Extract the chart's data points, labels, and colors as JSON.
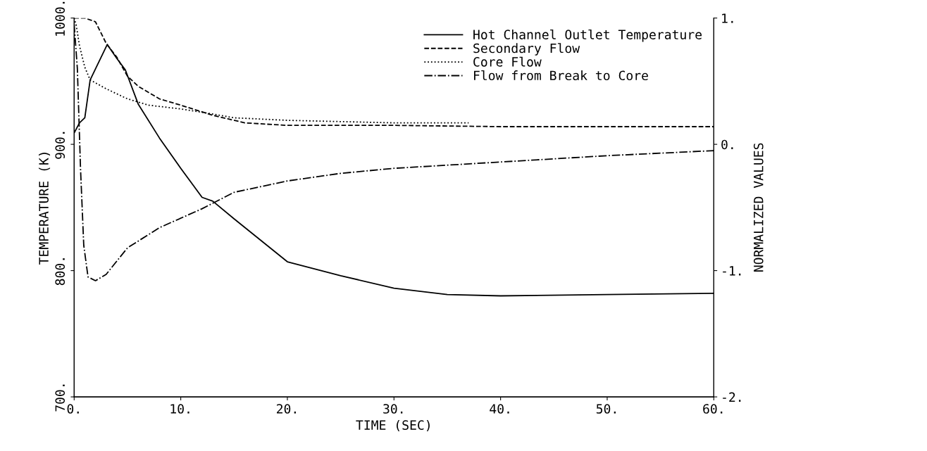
{
  "chart_data": {
    "type": "line",
    "xlabel": "TIME (SEC)",
    "ylabel": "TEMPERATURE (K)",
    "y2label": "NORMALIZED VALUES",
    "xlim": [
      0,
      60
    ],
    "xticks": [
      {
        "value": 0,
        "label": "0."
      },
      {
        "value": 10,
        "label": "10."
      },
      {
        "value": 20,
        "label": "20."
      },
      {
        "value": 30,
        "label": "30."
      },
      {
        "value": 40,
        "label": "40."
      },
      {
        "value": 50,
        "label": "50."
      },
      {
        "value": 60,
        "label": "60."
      }
    ],
    "ylim": [
      700,
      1000
    ],
    "yticks": [
      {
        "value": 700,
        "label": "700."
      },
      {
        "value": 800,
        "label": "800."
      },
      {
        "value": 900,
        "label": "900."
      },
      {
        "value": 1000,
        "label": "1000."
      }
    ],
    "y2lim": [
      -2,
      1
    ],
    "y2ticks": [
      {
        "value": -2,
        "label": "-2."
      },
      {
        "value": -1,
        "label": "-1."
      },
      {
        "value": 0,
        "label": "0."
      },
      {
        "value": 1,
        "label": "1."
      }
    ],
    "legend": "top right",
    "grid": false,
    "series": [
      {
        "name": "Hot Channel Outlet Temperature",
        "color": "#000000",
        "line_style": "solid",
        "x": [
          0,
          0.5,
          1,
          1.5,
          3.1,
          4,
          4.8,
          6,
          8,
          10,
          12,
          13,
          15,
          20,
          25,
          30,
          35,
          40,
          50,
          60
        ],
        "values": [
          909,
          917,
          921,
          951,
          979,
          968,
          959,
          932,
          905,
          881,
          858,
          855,
          841,
          807,
          796,
          786,
          781,
          780,
          781,
          782
        ]
      },
      {
        "name": "Secondary Flow",
        "color": "#000000",
        "line_style": "dashed",
        "axis": "y2",
        "x": [
          0,
          1,
          2,
          3,
          4,
          5,
          6,
          8,
          10,
          13,
          16,
          20,
          30,
          40,
          50,
          60
        ],
        "values": [
          1.0,
          1.0,
          0.97,
          0.8,
          0.69,
          0.54,
          0.46,
          0.36,
          0.31,
          0.23,
          0.17,
          0.15,
          0.15,
          0.14,
          0.14,
          0.14
        ]
      },
      {
        "name": "Core Flow",
        "color": "#000000",
        "line_style": "dotted",
        "axis": "y2",
        "x": [
          0,
          0.2,
          0.5,
          1,
          1.5,
          3,
          5,
          7,
          10,
          13,
          15,
          20,
          30,
          37
        ],
        "values": [
          1.0,
          0.94,
          0.78,
          0.61,
          0.51,
          0.44,
          0.36,
          0.31,
          0.28,
          0.24,
          0.21,
          0.19,
          0.17,
          0.17
        ]
      },
      {
        "name": "Flow from Break to Core",
        "color": "#000000",
        "line_style": "dashdot",
        "axis": "y2",
        "x": [
          0,
          0.3,
          0.6,
          0.9,
          1.3,
          2,
          3,
          5,
          8,
          12,
          15,
          20,
          25,
          30,
          40,
          50,
          60
        ],
        "values": [
          0.95,
          0.6,
          -0.2,
          -0.8,
          -1.05,
          -1.08,
          -1.03,
          -0.82,
          -0.66,
          -0.51,
          -0.38,
          -0.29,
          -0.23,
          -0.19,
          -0.14,
          -0.09,
          -0.05
        ]
      }
    ]
  }
}
